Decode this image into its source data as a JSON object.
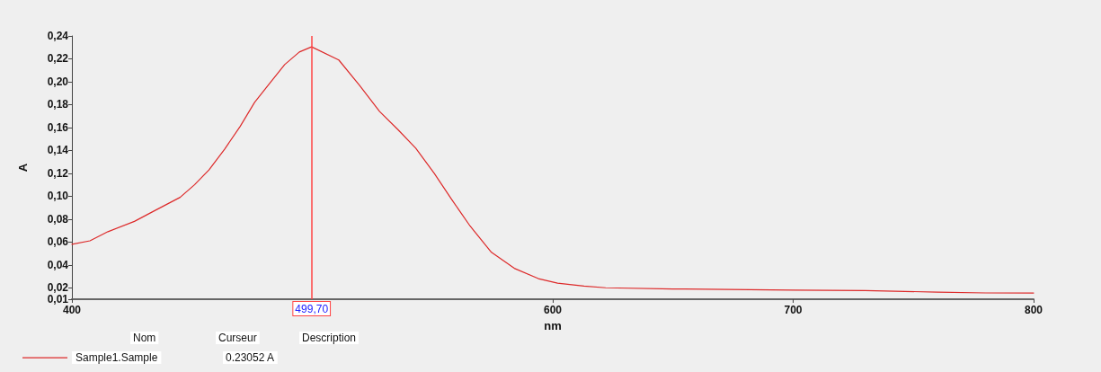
{
  "chart_data": {
    "type": "line",
    "xlabel": "nm",
    "ylabel": "A",
    "x": [
      400,
      407.5,
      415,
      426,
      435,
      445,
      451,
      457,
      463.5,
      470,
      476,
      482,
      488.5,
      494.6,
      499.7,
      511,
      519.6,
      528,
      535.7,
      543,
      550.7,
      558,
      565.6,
      574.5,
      584,
      594,
      602,
      613,
      622,
      650,
      700,
      730,
      760,
      780,
      800
    ],
    "series": [
      {
        "name": "Sample1.Sample",
        "color": "#dd2a2a",
        "values": [
          0.058,
          0.061,
          0.069,
          0.078,
          0.088,
          0.099,
          0.11,
          0.123,
          0.141,
          0.161,
          0.182,
          0.198,
          0.215,
          0.226,
          0.2305,
          0.219,
          0.197,
          0.174,
          0.158,
          0.142,
          0.12,
          0.097,
          0.074,
          0.051,
          0.037,
          0.028,
          0.024,
          0.0215,
          0.02,
          0.019,
          0.018,
          0.0176,
          0.0162,
          0.0155,
          0.0154
        ]
      }
    ],
    "xlim": [
      400,
      800
    ],
    "xticks": [
      400,
      600,
      700,
      800
    ],
    "ylim": [
      0.01,
      0.24
    ],
    "yticks": [
      {
        "value": 0.01,
        "label": "0,01"
      },
      {
        "value": 0.02,
        "label": "0,02"
      },
      {
        "value": 0.04,
        "label": "0,04"
      },
      {
        "value": 0.06,
        "label": "0,06"
      },
      {
        "value": 0.08,
        "label": "0,08"
      },
      {
        "value": 0.1,
        "label": "0,10"
      },
      {
        "value": 0.12,
        "label": "0,12"
      },
      {
        "value": 0.14,
        "label": "0,14"
      },
      {
        "value": 0.16,
        "label": "0,16"
      },
      {
        "value": 0.18,
        "label": "0,18"
      },
      {
        "value": 0.2,
        "label": "0,20"
      },
      {
        "value": 0.22,
        "label": "0,22"
      },
      {
        "value": 0.24,
        "label": "0,24"
      }
    ],
    "ref_lines": [
      {
        "axis": "x",
        "value": 499.7,
        "label": "499,70",
        "color": "#ff4444"
      }
    ],
    "annotations": [
      "Nom",
      "Curseur",
      "Description",
      "0.23052 A"
    ],
    "legend": "bottom left",
    "grid": false,
    "marker": "none",
    "line_style": "solid"
  }
}
